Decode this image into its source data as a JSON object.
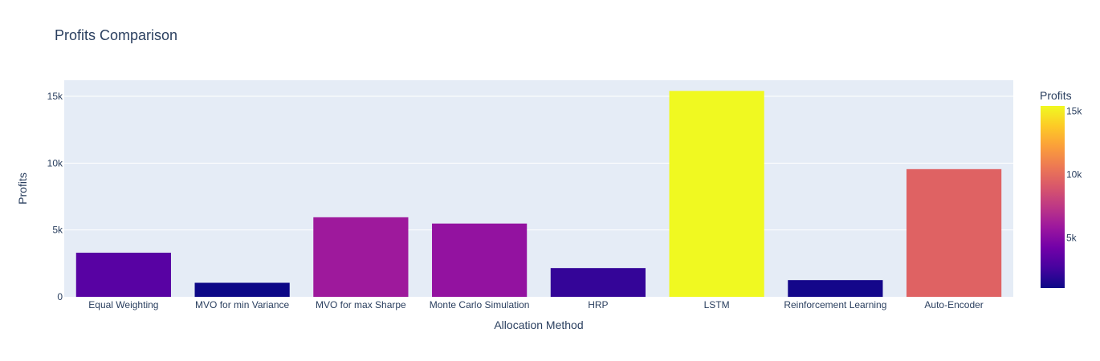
{
  "chart_data": {
    "type": "bar",
    "title": "Profits Comparison",
    "xlabel": "Allocation Method",
    "ylabel": "Profits",
    "categories": [
      "Equal Weighting",
      "MVO for min Variance",
      "MVO for max Sharpe",
      "Monte Carlo Simulation",
      "HRP",
      "LSTM",
      "Reinforcement Learning",
      "Auto-Encoder"
    ],
    "values": [
      3300,
      1050,
      5950,
      5480,
      2150,
      15400,
      1250,
      9550
    ],
    "ylim": [
      0,
      16200
    ],
    "yticks": [
      0,
      5000,
      10000,
      15000
    ],
    "ytick_labels": [
      "0",
      "5k",
      "10k",
      "15k"
    ],
    "grid": true,
    "background": "#e5ecf6",
    "colorbar": {
      "title": "Profits",
      "range": [
        1050,
        15400
      ],
      "ticks": [
        5000,
        10000,
        15000
      ],
      "tick_labels": [
        "5k",
        "10k",
        "15k"
      ],
      "colorscale": [
        "#0d0887",
        "#46039f",
        "#7201a8",
        "#9c179e",
        "#bd3786",
        "#d8576b",
        "#ed7953",
        "#fb9f3a",
        "#fdca26",
        "#f0f921"
      ]
    }
  }
}
